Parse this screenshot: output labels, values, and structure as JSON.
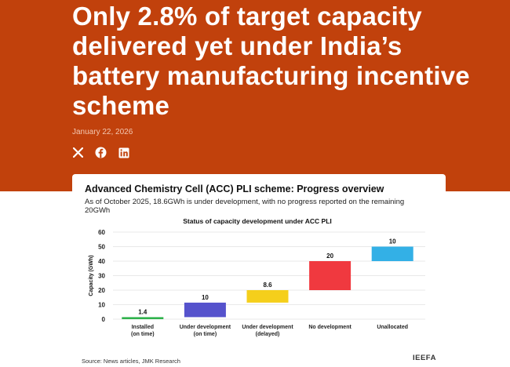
{
  "article": {
    "headline": "Only 2.8% of target capacity delivered yet under India’s battery manufacturing incentive scheme",
    "date": "January 22, 2026",
    "share": [
      {
        "icon": "x-icon",
        "glyph": "X"
      },
      {
        "icon": "facebook-icon",
        "glyph": "f"
      },
      {
        "icon": "linkedin-icon",
        "glyph": "in"
      }
    ]
  },
  "card": {
    "title": "Advanced Chemistry Cell (ACC) PLI scheme: Progress overview",
    "subtitle": "As of October 2025, 18.6GWh is under development, with no progress reported on the remaining 20GWh",
    "source": "Source: News articles, JMK Research",
    "brand": "IEEFA"
  },
  "chart_data": {
    "type": "bar",
    "subtype": "waterfall",
    "title": "Status of capacity development under ACC PLI",
    "ylabel": "Capacity (GWh)",
    "ylim": [
      0,
      60
    ],
    "yticks": [
      0,
      10,
      20,
      30,
      40,
      50,
      60
    ],
    "grid": true,
    "categories": [
      [
        "Installed",
        "(on time)"
      ],
      [
        "Under development",
        "(on time)"
      ],
      [
        "Under development",
        "(delayed)"
      ],
      [
        "No development"
      ],
      [
        "Unallocated"
      ]
    ],
    "values": [
      1.4,
      10,
      8.6,
      20,
      10
    ],
    "value_labels": [
      "1.4",
      "10",
      "8.6",
      "20",
      "10"
    ],
    "colors": [
      "#2fb24c",
      "#5552cc",
      "#f5cf1b",
      "#f0393f",
      "#33b0e6"
    ]
  }
}
